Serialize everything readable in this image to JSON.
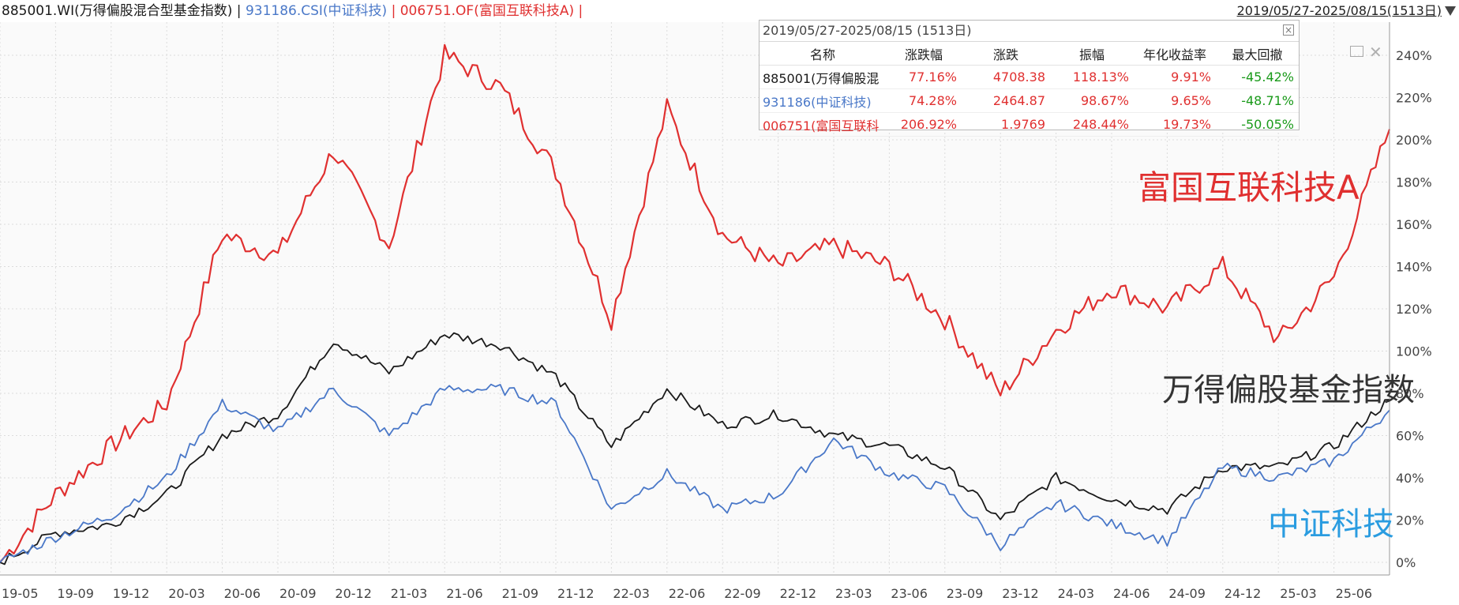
{
  "header": {
    "seg1": "885001.WI(万得偏股混合型基金指数)",
    "sep1": " | ",
    "seg2": "931186.CSI(中证科技)",
    "sep2": " | ",
    "seg3": "006751.OF(富国互联科技A)",
    "sep3": " |",
    "date_range": "2019/05/27-2025/08/15(1513日)"
  },
  "stats": {
    "title": "2019/05/27-2025/08/15 (1513日)",
    "columns": [
      "名称",
      "涨跌幅",
      "涨跌",
      "振幅",
      "年化收益率",
      "最大回撤"
    ],
    "rows": [
      {
        "name": "885001(万得偏股混",
        "chg_pct": "77.16%",
        "chg": "4708.38",
        "amp": "118.13%",
        "annual": "9.91%",
        "mdd": "-45.42%",
        "color": "#1a1a1a"
      },
      {
        "name": "931186(中证科技)",
        "chg_pct": "74.28%",
        "chg": "2464.87",
        "amp": "98.67%",
        "annual": "9.65%",
        "mdd": "-48.71%",
        "color": "#4a78c8"
      },
      {
        "name": "006751(富国互联科",
        "chg_pct": "206.92%",
        "chg": "1.9769",
        "amp": "248.44%",
        "annual": "19.73%",
        "mdd": "-50.05%",
        "color": "#e03030"
      }
    ],
    "up_color": "#e03030",
    "down_color": "#1a9a1a"
  },
  "chart_data": {
    "type": "line",
    "x": [
      "19-05",
      "19-09",
      "19-12",
      "20-03",
      "20-06",
      "20-09",
      "20-12",
      "21-03",
      "21-06",
      "21-09",
      "21-12",
      "22-03",
      "22-06",
      "22-09",
      "22-12",
      "23-03",
      "23-06",
      "23-09",
      "23-12",
      "24-03",
      "24-06",
      "24-09",
      "24-12",
      "25-03",
      "25-06",
      "25-08"
    ],
    "xticks": [
      "19-05",
      "19-09",
      "19-12",
      "20-03",
      "20-06",
      "20-09",
      "20-12",
      "21-03",
      "21-06",
      "21-09",
      "21-12",
      "22-03",
      "22-06",
      "22-09",
      "22-12",
      "23-03",
      "23-06",
      "23-09",
      "23-12",
      "24-03",
      "24-06",
      "24-09",
      "24-12",
      "25-03",
      "25-06"
    ],
    "yticks": [
      "0%",
      "20%",
      "40%",
      "60%",
      "80%",
      "100%",
      "120%",
      "140%",
      "160%",
      "180%",
      "200%",
      "220%",
      "240%"
    ],
    "ylim": [
      -5,
      245
    ],
    "series": [
      {
        "name": "富国互联科技A",
        "color": "#e03030",
        "values": [
          0,
          32,
          55,
          75,
          155,
          145,
          195,
          150,
          240,
          225,
          185,
          115,
          215,
          155,
          140,
          150,
          140,
          115,
          80,
          110,
          130,
          120,
          140,
          105,
          135,
          205
        ]
      },
      {
        "name": "万得偏股基金指数",
        "color": "#1a1a1a",
        "values": [
          0,
          14,
          18,
          32,
          60,
          70,
          105,
          90,
          108,
          103,
          88,
          55,
          82,
          65,
          70,
          60,
          55,
          45,
          20,
          40,
          30,
          25,
          45,
          45,
          55,
          77
        ]
      },
      {
        "name": "中证科技",
        "color": "#4a78c8",
        "values": [
          0,
          12,
          22,
          40,
          75,
          62,
          82,
          60,
          82,
          82,
          75,
          25,
          42,
          25,
          32,
          58,
          42,
          35,
          8,
          28,
          18,
          10,
          45,
          40,
          48,
          72
        ]
      }
    ]
  },
  "labels": {
    "red_label": "富国互联科技A",
    "black_label": "万得偏股基金指数",
    "blue_label": "中证科技"
  }
}
